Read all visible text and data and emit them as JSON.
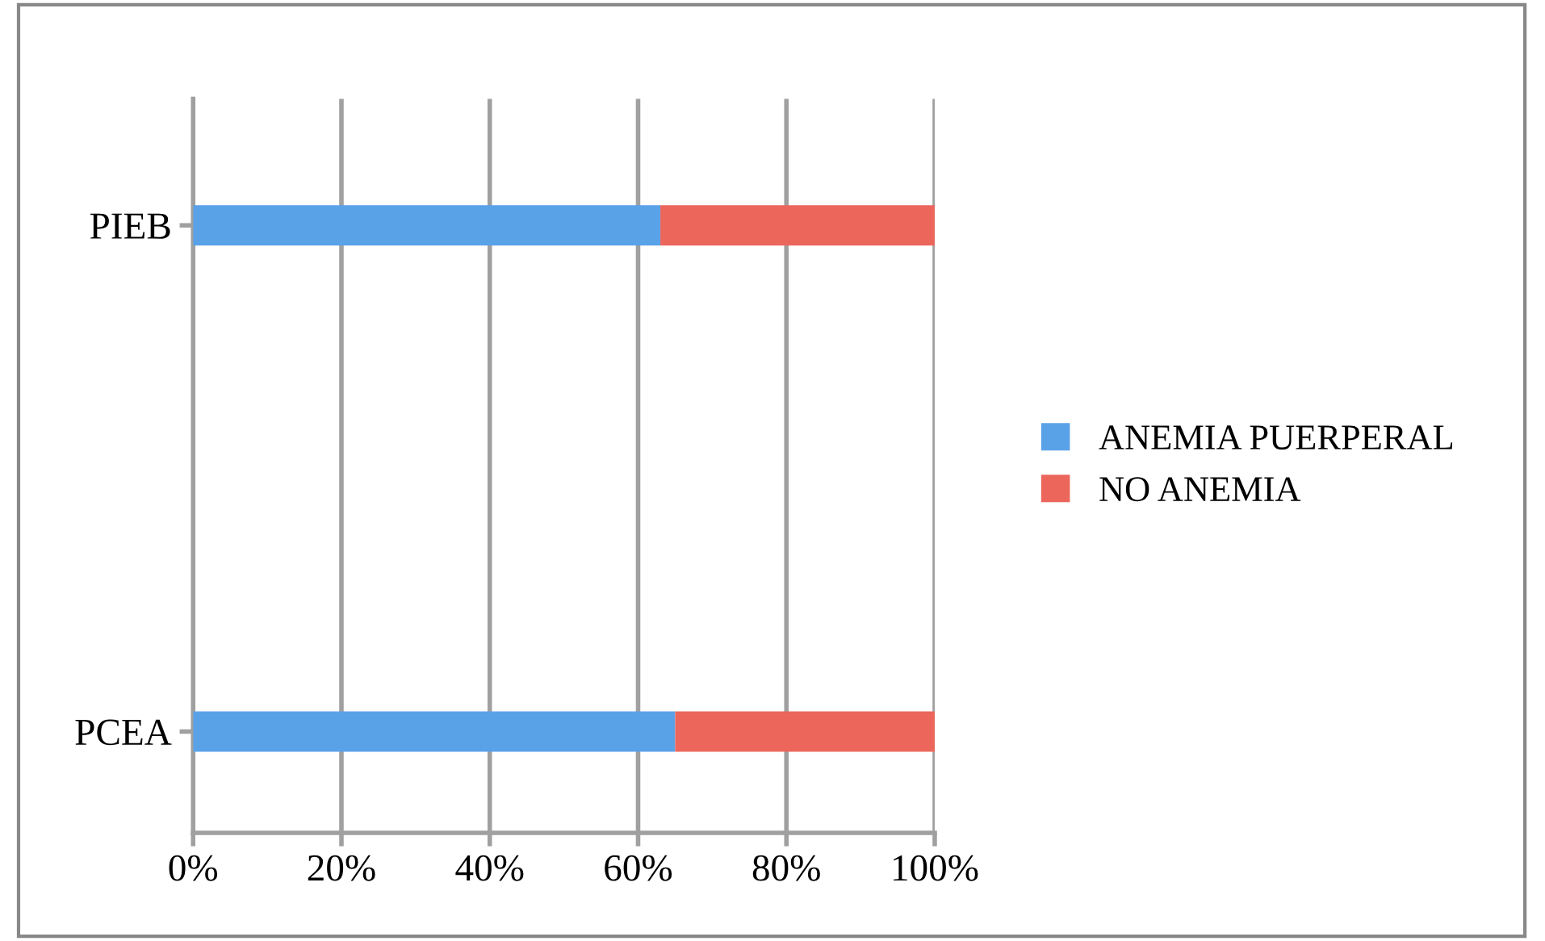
{
  "chart_data": {
    "type": "bar",
    "orientation": "horizontal",
    "stacked": true,
    "categories": [
      "PIEB",
      "PCEA"
    ],
    "series": [
      {
        "name": "ANEMIA PUERPERAL",
        "color": "#5aa2e8",
        "values": [
          63,
          65
        ]
      },
      {
        "name": "NO ANEMIA",
        "color": "#ec665c",
        "values": [
          37,
          35
        ]
      }
    ],
    "xlim": [
      0,
      100
    ],
    "xticks": [
      {
        "value": 0,
        "label": "0%"
      },
      {
        "value": 20,
        "label": "20%"
      },
      {
        "value": 40,
        "label": "40%"
      },
      {
        "value": 60,
        "label": "60%"
      },
      {
        "value": 80,
        "label": "80%"
      },
      {
        "value": 100,
        "label": "100%"
      }
    ],
    "grid": "x",
    "legend": "right"
  }
}
